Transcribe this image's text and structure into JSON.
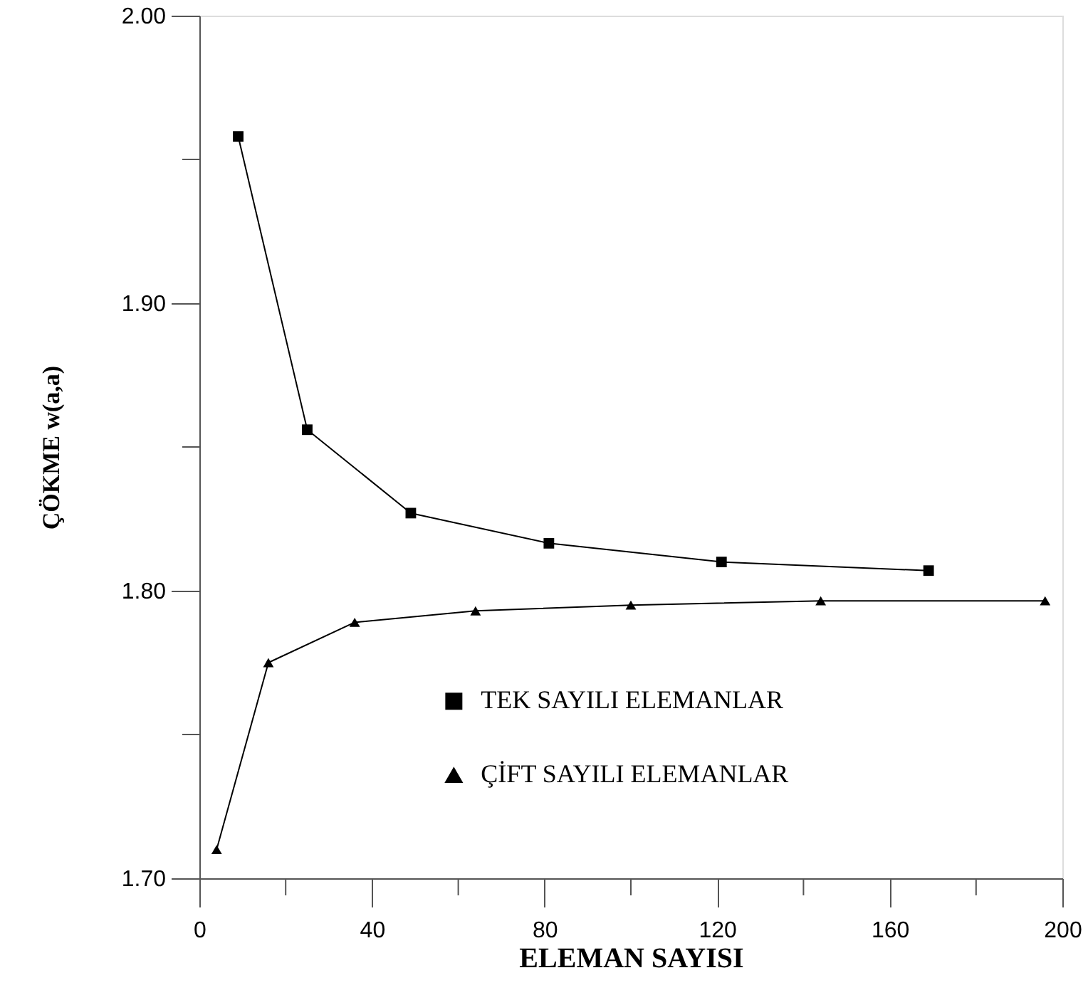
{
  "chart_data": {
    "type": "line",
    "xlabel": "ELEMAN SAYISI",
    "ylabel": "ÇÖKME w(a,a)",
    "xlim": [
      0,
      200
    ],
    "xticks": [
      0,
      {
        "value": 20,
        "label": null
      },
      40,
      {
        "value": 60,
        "label": null
      },
      80,
      {
        "value": 100,
        "label": null
      },
      120,
      {
        "value": 140,
        "label": null
      },
      160,
      {
        "value": 180,
        "label": null
      },
      200
    ],
    "ylim": [
      1.7,
      2.0
    ],
    "yticks": [
      {
        "value": 1.7,
        "label": "1.70"
      },
      {
        "value": 1.75,
        "label": null
      },
      {
        "value": 1.8,
        "label": "1.80"
      },
      {
        "value": 1.85,
        "label": null
      },
      {
        "value": 1.9,
        "label": "1.90"
      },
      {
        "value": 1.95,
        "label": null
      },
      {
        "value": 2.0,
        "label": "2.00"
      }
    ],
    "legend": "bottom",
    "grid": false,
    "line_style": "solid",
    "series": [
      {
        "name": "TEK SAYILI ELEMANLAR",
        "color": "#000000",
        "marker": "square",
        "x": [
          9,
          25,
          49,
          81,
          121,
          169
        ],
        "values": [
          1.958,
          1.856,
          1.827,
          1.8165,
          1.81,
          1.807
        ]
      },
      {
        "name": "ÇİFT SAYILI ELEMANLAR",
        "color": "#000000",
        "marker": "triangle",
        "x": [
          4,
          16,
          36,
          64,
          100,
          144,
          196
        ],
        "values": [
          1.71,
          1.775,
          1.789,
          1.793,
          1.795,
          1.7965,
          1.7965
        ]
      }
    ]
  }
}
